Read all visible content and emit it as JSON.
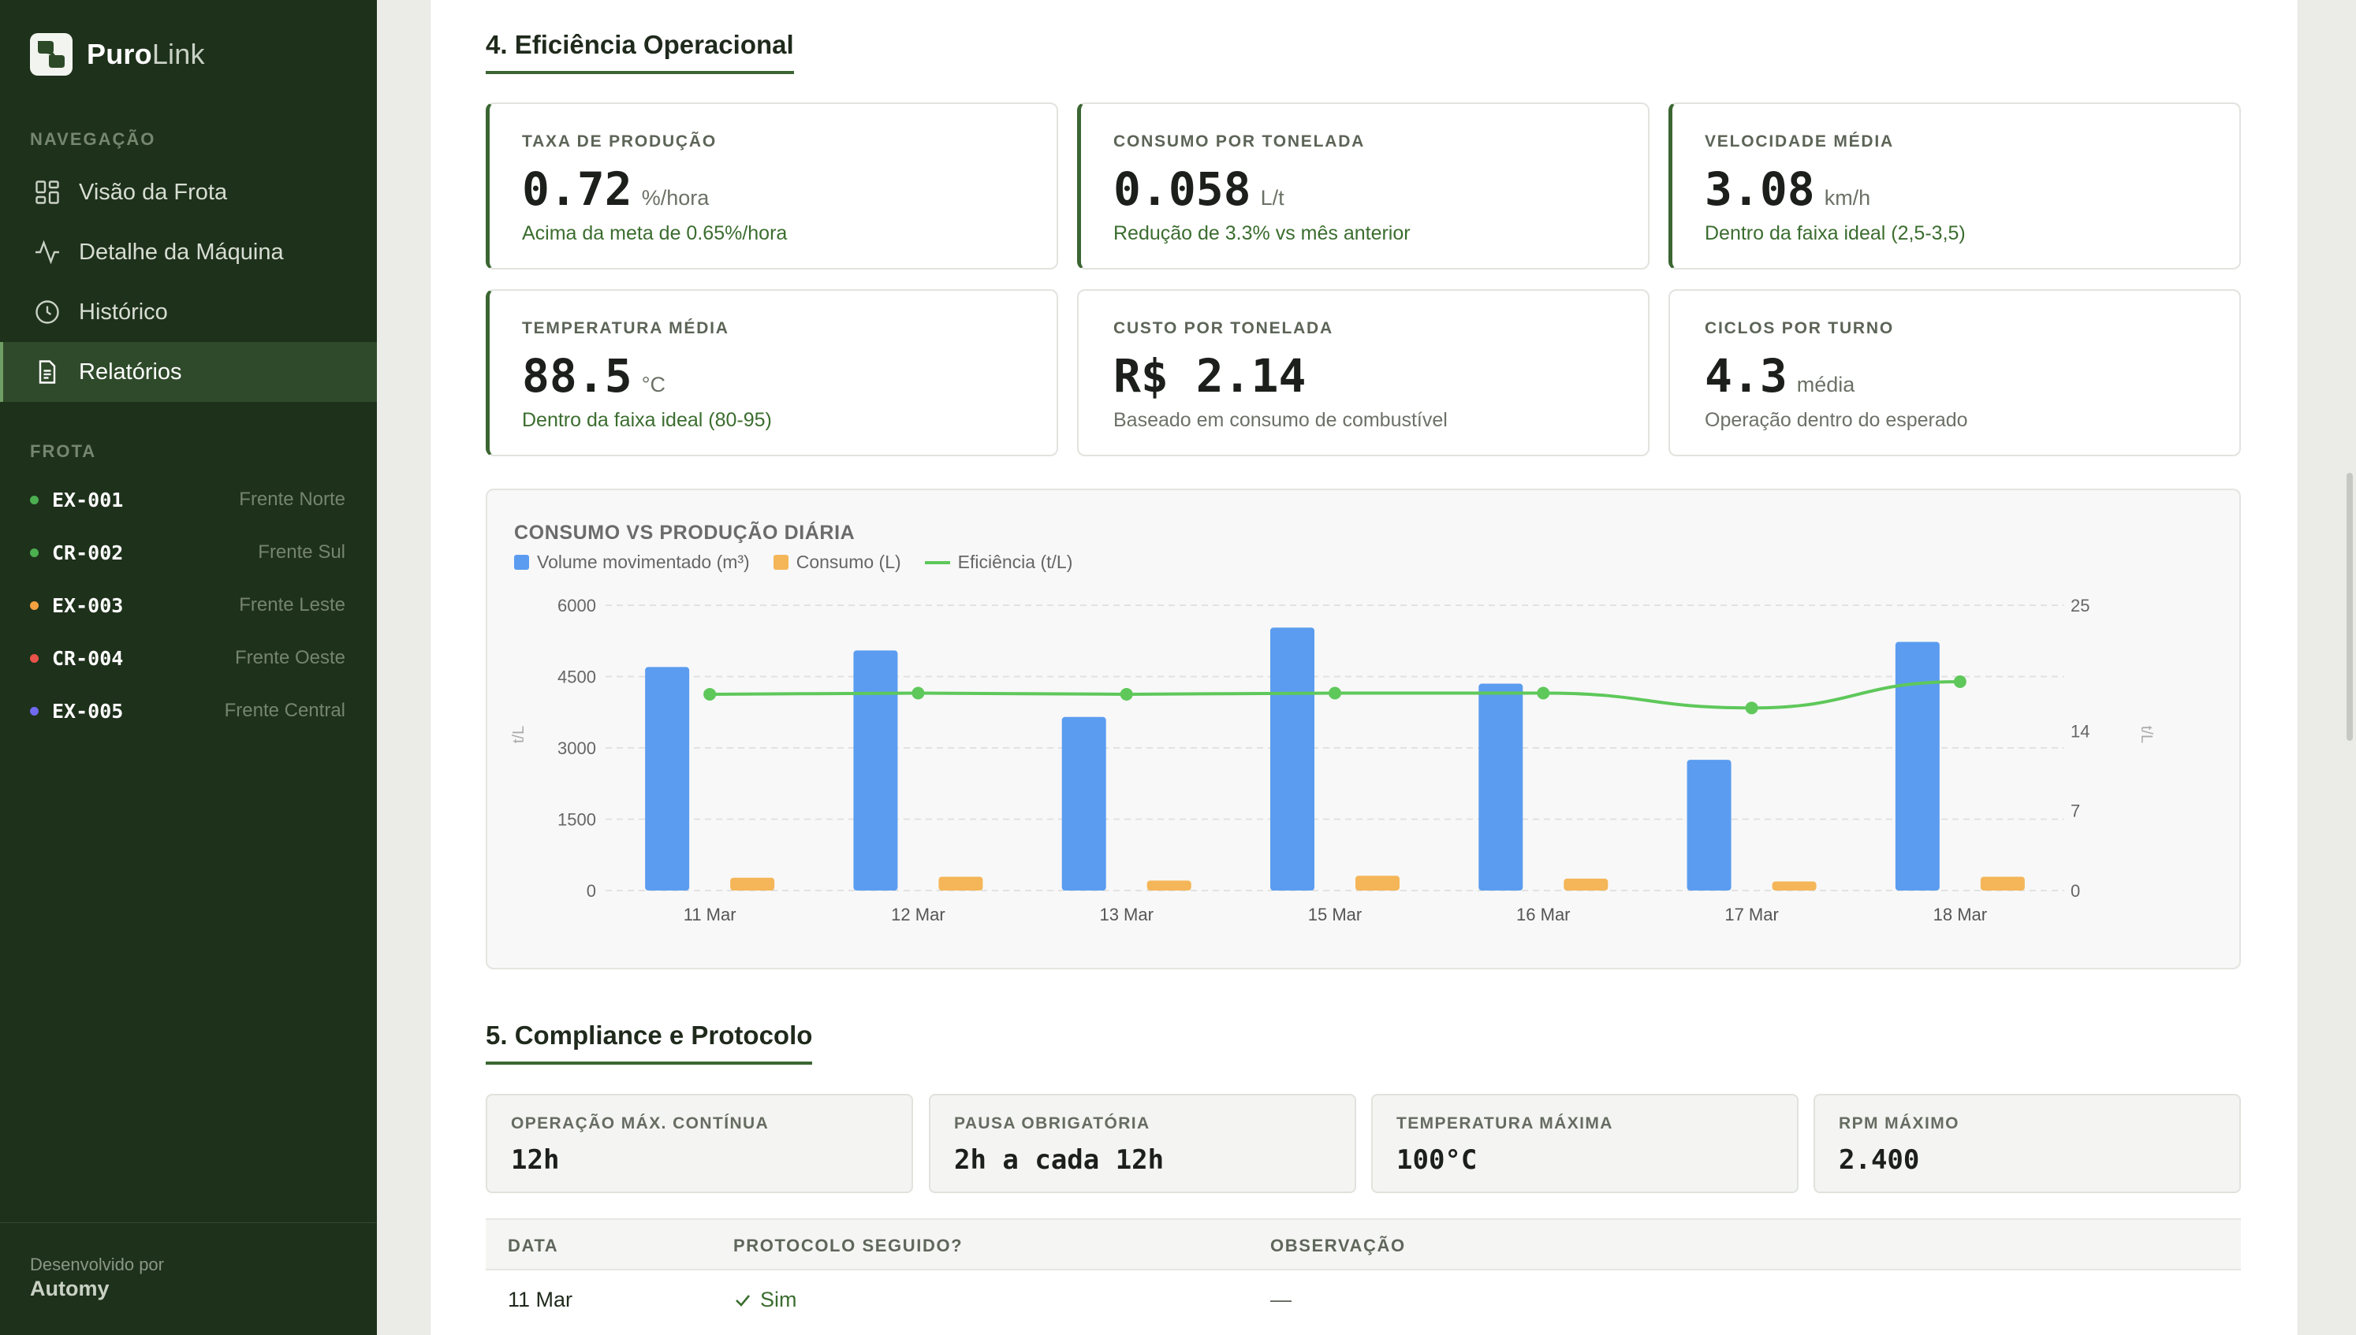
{
  "app": {
    "brand_bold": "Puro",
    "brand_light": "Link",
    "colors": {
      "sidebar": "#1e311b",
      "accent": "#3b6632",
      "positive": "#3b6d2f"
    }
  },
  "sidebar": {
    "nav_title": "NAVEGAÇÃO",
    "nav": [
      {
        "label": "Visão da Frota",
        "icon": "grid-icon"
      },
      {
        "label": "Detalhe da Máquina",
        "icon": "activity-icon"
      },
      {
        "label": "Histórico",
        "icon": "clock-icon"
      },
      {
        "label": "Relatórios",
        "icon": "document-icon",
        "active": true
      }
    ],
    "fleet_title": "FROTA",
    "fleet": [
      {
        "code": "EX-001",
        "location": "Frente Norte",
        "status_color": "#4caf50"
      },
      {
        "code": "CR-002",
        "location": "Frente Sul",
        "status_color": "#4caf50"
      },
      {
        "code": "EX-003",
        "location": "Frente Leste",
        "status_color": "#f5a142"
      },
      {
        "code": "CR-004",
        "location": "Frente Oeste",
        "status_color": "#e8534a"
      },
      {
        "code": "EX-005",
        "location": "Frente Central",
        "status_color": "#6f6af0"
      }
    ],
    "footer_label": "Desenvolvido por",
    "footer_name": "Automy"
  },
  "efficiency": {
    "title": "4. Eficiência Operacional",
    "kpis": [
      {
        "label": "TAXA DE PRODUÇÃO",
        "value": "0.72",
        "unit": "%/hora",
        "note": "Acima da meta de 0.65%/hora"
      },
      {
        "label": "CONSUMO POR TONELADA",
        "value": "0.058",
        "unit": "L/t",
        "note": "Redução de 3.3% vs mês anterior"
      },
      {
        "label": "VELOCIDADE MÉDIA",
        "value": "3.08",
        "unit": "km/h",
        "note": "Dentro da faixa ideal (2,5-3,5)"
      },
      {
        "label": "TEMPERATURA MÉDIA",
        "value": "88.5",
        "unit": "°C",
        "note": "Dentro da faixa ideal (80-95)"
      },
      {
        "label": "CUSTO POR TONELADA",
        "value": "R$ 2.14",
        "unit": "",
        "note": "Baseado em consumo de combustível"
      },
      {
        "label": "CICLOS POR TURNO",
        "value": "4.3",
        "unit": "média",
        "note": "Operação dentro do esperado"
      }
    ]
  },
  "chart_data": {
    "type": "bar",
    "title": "CONSUMO VS PRODUÇÃO DIÁRIA",
    "categories": [
      "11 Mar",
      "12 Mar",
      "13 Mar",
      "15 Mar",
      "16 Mar",
      "17 Mar",
      "18 Mar"
    ],
    "series": [
      {
        "name": "Volume movimentado (m³)",
        "type": "bar",
        "axis": "left",
        "color": "#5b9cf0",
        "values": [
          4700,
          5050,
          3650,
          5530,
          4350,
          2750,
          5230
        ]
      },
      {
        "name": "Consumo (L)",
        "type": "bar",
        "axis": "left",
        "color": "#f4b658",
        "values": [
          270,
          290,
          210,
          310,
          250,
          190,
          290
        ]
      },
      {
        "name": "Eficiência (t/L)",
        "type": "line",
        "axis": "right",
        "color": "#5ec85a",
        "values": [
          17.2,
          17.3,
          17.2,
          17.3,
          17.3,
          16.0,
          18.3
        ]
      }
    ],
    "y_left": {
      "label": "t/L",
      "min": 0,
      "max": 6000,
      "ticks": [
        "0",
        "1500",
        "3000",
        "4500",
        "6000"
      ]
    },
    "y_right": {
      "label": "t/L",
      "min": 0,
      "max": 25,
      "ticks": [
        "0",
        "7",
        "14",
        "25"
      ]
    },
    "grid": true,
    "legend": "top-left"
  },
  "compliance": {
    "title": "5. Compliance e Protocolo",
    "cards": [
      {
        "label": "OPERAÇÃO MÁX. CONTÍNUA",
        "value": "12h"
      },
      {
        "label": "PAUSA OBRIGATÓRIA",
        "value": "2h a cada 12h"
      },
      {
        "label": "TEMPERATURA MÁXIMA",
        "value": "100°C"
      },
      {
        "label": "RPM MÁXIMO",
        "value": "2.400"
      }
    ],
    "table": {
      "headers": [
        "DATA",
        "PROTOCOLO SEGUIDO?",
        "OBSERVAÇÃO"
      ],
      "rows": [
        {
          "date": "11 Mar",
          "followed": "Sim",
          "note": "—"
        }
      ]
    }
  }
}
